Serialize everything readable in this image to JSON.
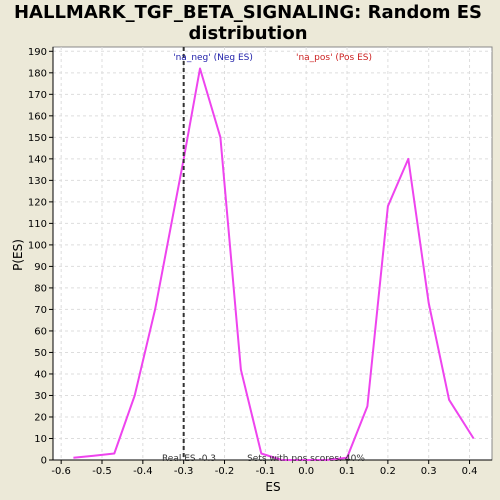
{
  "chart_data": {
    "type": "line",
    "title_line1": "HALLMARK_TGF_BETA_SIGNALING: Random ES",
    "title_line2": "distribution",
    "xlabel": "ES",
    "ylabel": "P(ES)",
    "xlim": [
      -0.62,
      0.455
    ],
    "ylim": [
      0,
      192
    ],
    "xticks": [
      -0.6,
      -0.5,
      -0.4,
      -0.3,
      -0.2,
      -0.1,
      0.0,
      0.1,
      0.2,
      0.3,
      0.4
    ],
    "yticks": [
      0,
      10,
      20,
      30,
      40,
      50,
      60,
      70,
      80,
      90,
      100,
      110,
      120,
      130,
      140,
      150,
      160,
      170,
      180,
      190
    ],
    "grid": true,
    "series": [
      {
        "color": "#ee44ee",
        "x": [
          -0.57,
          -0.52,
          -0.47,
          -0.42,
          -0.37,
          -0.3,
          -0.26,
          -0.21,
          -0.16,
          -0.11,
          -0.06,
          0.0,
          0.05,
          0.1,
          0.15,
          0.2,
          0.25,
          0.3,
          0.35,
          0.41
        ],
        "y": [
          1,
          2,
          3,
          30,
          70,
          140,
          182,
          150,
          42,
          3,
          0,
          0,
          0,
          1,
          25,
          118,
          140,
          73,
          28,
          10
        ]
      }
    ],
    "real_es": {
      "value": -0.3,
      "label": "Real ES -0.3"
    },
    "annotations": {
      "neg": {
        "text": "'na_neg' (Neg ES)",
        "color": "#2222aa"
      },
      "pos": {
        "text": "'na_pos' (Pos ES)",
        "color": "#cc2222"
      },
      "sets": {
        "text": "Sets with pos scores: 40%"
      }
    },
    "colors": {
      "background": "#ece9d8",
      "plot": "#ffffff",
      "grid": "#dddddd",
      "line": "#ee44ee"
    }
  }
}
